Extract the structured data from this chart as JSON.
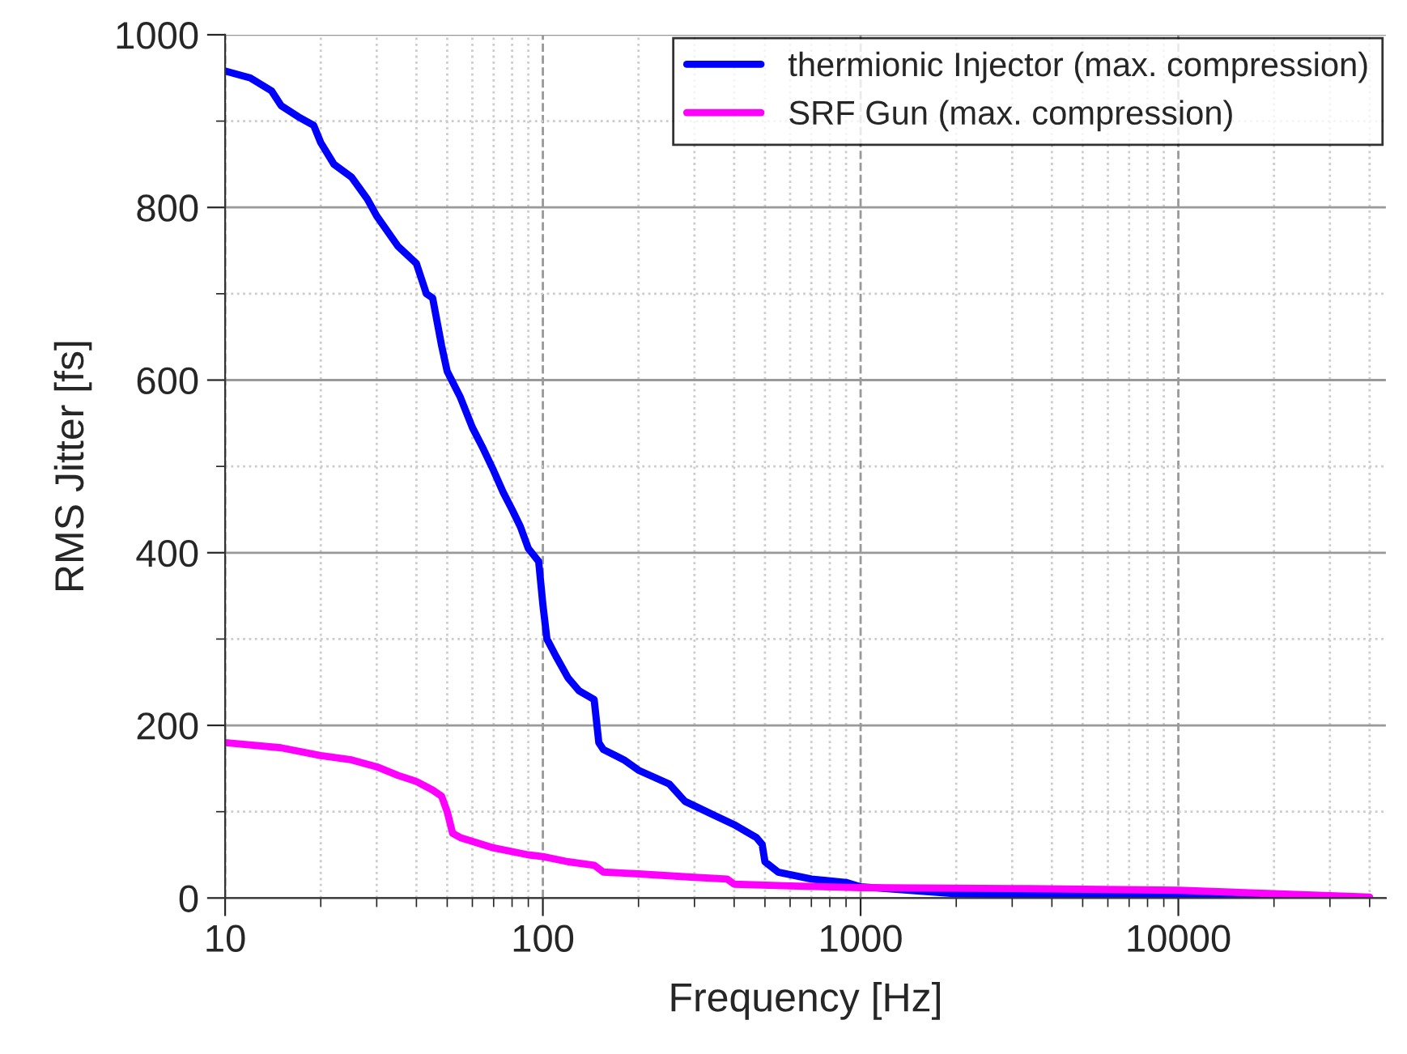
{
  "chart_data": {
    "type": "line",
    "xlabel": "Frequency [Hz]",
    "ylabel": "RMS Jitter [fs]",
    "log": "x",
    "grid": true,
    "legend": "top right",
    "xlim": [
      10,
      45000
    ],
    "xticks": [
      10,
      100,
      1000,
      10000
    ],
    "ylim": [
      0,
      1000
    ],
    "yticks": [
      0,
      200,
      400,
      600,
      800,
      1000
    ],
    "series": [
      {
        "name": "thermionic Injector (max. compression)",
        "color": "#0000ff",
        "x": [
          10,
          12,
          14,
          15,
          17,
          19,
          20,
          22,
          25,
          28,
          30,
          35,
          40,
          43,
          45,
          48,
          50,
          55,
          60,
          65,
          70,
          75,
          80,
          85,
          90,
          97,
          100,
          103,
          110,
          120,
          130,
          145,
          150,
          155,
          180,
          200,
          250,
          280,
          350,
          400,
          470,
          490,
          500,
          550,
          700,
          900,
          1000,
          2000,
          5000,
          40000
        ],
        "values": [
          958,
          950,
          935,
          918,
          905,
          895,
          875,
          850,
          835,
          810,
          790,
          755,
          735,
          700,
          695,
          640,
          610,
          580,
          545,
          520,
          495,
          470,
          450,
          430,
          405,
          390,
          340,
          300,
          280,
          255,
          240,
          230,
          180,
          172,
          160,
          148,
          132,
          112,
          95,
          85,
          70,
          62,
          42,
          30,
          22,
          18,
          13,
          5,
          3,
          0
        ]
      },
      {
        "name": "SRF Gun (max. compression)",
        "color": "#ff00ff",
        "x": [
          10,
          15,
          20,
          25,
          30,
          35,
          40,
          45,
          48,
          50,
          52,
          55,
          70,
          90,
          100,
          120,
          145,
          155,
          200,
          300,
          380,
          400,
          600,
          1000,
          3000,
          10000,
          40000
        ],
        "values": [
          180,
          174,
          165,
          160,
          152,
          142,
          135,
          125,
          118,
          100,
          75,
          70,
          58,
          50,
          48,
          42,
          38,
          30,
          28,
          24,
          22,
          16,
          14,
          12,
          11,
          9,
          1
        ]
      }
    ]
  }
}
